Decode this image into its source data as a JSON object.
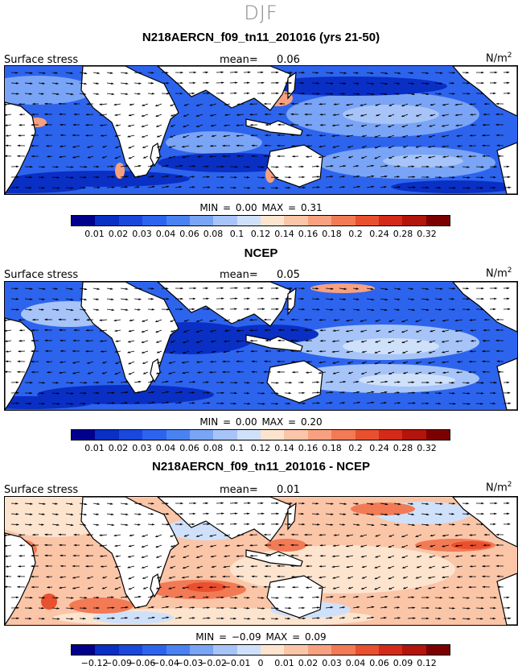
{
  "figure": {
    "season": "DJF"
  },
  "colors": {
    "land": "#ffffff",
    "seq_scale": [
      "#00008c",
      "#0a2fc4",
      "#1a48dc",
      "#2d64ee",
      "#4a82f2",
      "#7aa4f5",
      "#a6c4f8",
      "#cfe1fa",
      "#fde4cf",
      "#fbc5a8",
      "#f8a180",
      "#f27a55",
      "#e9502f",
      "#d42a1a",
      "#b3140c",
      "#7d0000"
    ],
    "diff_scale": [
      "#00008c",
      "#0a2fc4",
      "#1a48dc",
      "#2d64ee",
      "#4a82f2",
      "#7aa4f5",
      "#a6c4f8",
      "#cfe1fa",
      "#fde4cf",
      "#fbc5a8",
      "#f8a180",
      "#f27a55",
      "#e9502f",
      "#d42a1a",
      "#b3140c",
      "#7d0000"
    ]
  },
  "panels": [
    {
      "title": "N218AERCN_f09_tn11_201016 (yrs 21-50)",
      "left_label": "Surface stress",
      "mean_label": "mean=",
      "mean_value": "0.06",
      "units": "N/m",
      "units_exp": "2",
      "min_label": "MIN =",
      "min_value": "0.00",
      "max_label": "MAX =",
      "max_value": "0.31",
      "field_style": "model",
      "colorbar_labels": [
        "0.01",
        "0.02",
        "0.03",
        "0.04",
        "0.06",
        "0.08",
        "0.1",
        "0.12",
        "0.14",
        "0.16",
        "0.18",
        "0.2",
        "0.24",
        "0.28",
        "0.32"
      ]
    },
    {
      "title": "NCEP",
      "left_label": "Surface stress",
      "mean_label": "mean=",
      "mean_value": "0.05",
      "units": "N/m",
      "units_exp": "2",
      "min_label": "MIN =",
      "min_value": "0.00",
      "max_label": "MAX =",
      "max_value": "0.20",
      "field_style": "obs",
      "colorbar_labels": [
        "0.01",
        "0.02",
        "0.03",
        "0.04",
        "0.06",
        "0.08",
        "0.1",
        "0.12",
        "0.14",
        "0.16",
        "0.18",
        "0.2",
        "0.24",
        "0.28",
        "0.32"
      ]
    },
    {
      "title": "N218AERCN_f09_tn11_201016 - NCEP",
      "left_label": "Surface stress",
      "mean_label": "mean=",
      "mean_value": "0.01",
      "units": "N/m",
      "units_exp": "2",
      "min_label": "MIN =",
      "min_value": "−0.09",
      "max_label": "MAX =",
      "max_value": "0.09",
      "field_style": "diff",
      "colorbar_labels": [
        "−0.12",
        "−0.09",
        "−0.06",
        "−0.04",
        "−0.03",
        "−0.02",
        "−0.01",
        "0",
        "0.01",
        "0.02",
        "0.03",
        "0.04",
        "0.06",
        "0.09",
        "0.12"
      ]
    }
  ]
}
